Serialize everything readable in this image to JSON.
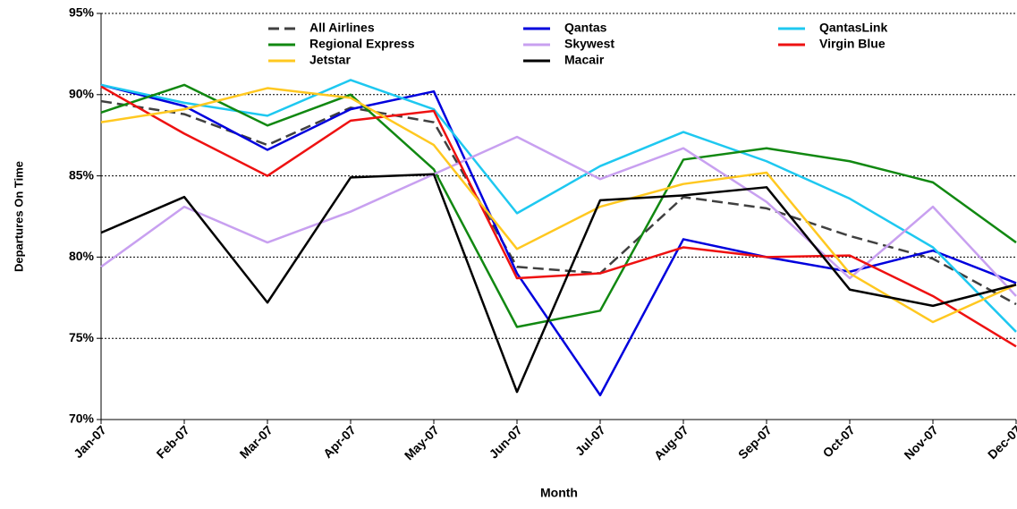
{
  "chart_data": {
    "type": "line",
    "y_label": "Departures On Time",
    "x_label": "Month",
    "categories": [
      "Jan-07",
      "Feb-07",
      "Mar-07",
      "Apr-07",
      "May-07",
      "Jun-07",
      "Jul-07",
      "Aug-07",
      "Sep-07",
      "Oct-07",
      "Nov-07",
      "Dec-07"
    ],
    "ylim": [
      70,
      95
    ],
    "yticks": [
      {
        "value": 70,
        "label": "70%"
      },
      {
        "value": 75,
        "label": "75%"
      },
      {
        "value": 80,
        "label": "80%"
      },
      {
        "value": 85,
        "label": "85%"
      },
      {
        "value": 90,
        "label": "90%"
      },
      {
        "value": 95,
        "label": "95%"
      }
    ],
    "grid": true,
    "series": [
      {
        "name": "All Airlines",
        "color": "#404040",
        "dashed": true,
        "values": [
          89.6,
          88.8,
          86.9,
          89.2,
          88.3,
          79.4,
          79.0,
          83.7,
          83.0,
          81.3,
          79.9,
          77.1
        ]
      },
      {
        "name": "Qantas",
        "color": "#0000dd",
        "values": [
          90.6,
          89.3,
          86.6,
          89.1,
          90.2,
          79.0,
          71.5,
          81.1,
          80.0,
          79.1,
          80.4,
          78.4
        ]
      },
      {
        "name": "QantasLink",
        "color": "#1ec8f0",
        "values": [
          90.6,
          89.5,
          88.7,
          90.9,
          89.1,
          82.7,
          85.6,
          87.7,
          85.9,
          83.6,
          80.6,
          75.4
        ]
      },
      {
        "name": "Regional Express",
        "color": "#118811",
        "values": [
          88.9,
          90.6,
          88.1,
          90.0,
          85.4,
          75.7,
          76.7,
          86.0,
          86.7,
          85.9,
          84.6,
          80.9
        ]
      },
      {
        "name": "Skywest",
        "color": "#c8a0f0",
        "values": [
          79.4,
          83.1,
          80.9,
          82.8,
          85.1,
          87.4,
          84.8,
          86.7,
          83.4,
          78.7,
          83.1,
          77.6
        ]
      },
      {
        "name": "Virgin Blue",
        "color": "#ee1111",
        "values": [
          90.5,
          87.6,
          85.0,
          88.4,
          89.0,
          78.7,
          79.0,
          80.6,
          80.0,
          80.1,
          77.6,
          74.5
        ]
      },
      {
        "name": "Jetstar",
        "color": "#ffc820",
        "values": [
          88.3,
          89.1,
          90.4,
          89.8,
          86.9,
          80.5,
          83.1,
          84.5,
          85.2,
          79.0,
          76.0,
          78.3
        ]
      },
      {
        "name": "Macair",
        "color": "#000000",
        "values": [
          81.5,
          83.7,
          77.2,
          84.9,
          85.1,
          71.7,
          83.5,
          83.8,
          84.3,
          78.0,
          77.0,
          78.3
        ]
      }
    ]
  }
}
